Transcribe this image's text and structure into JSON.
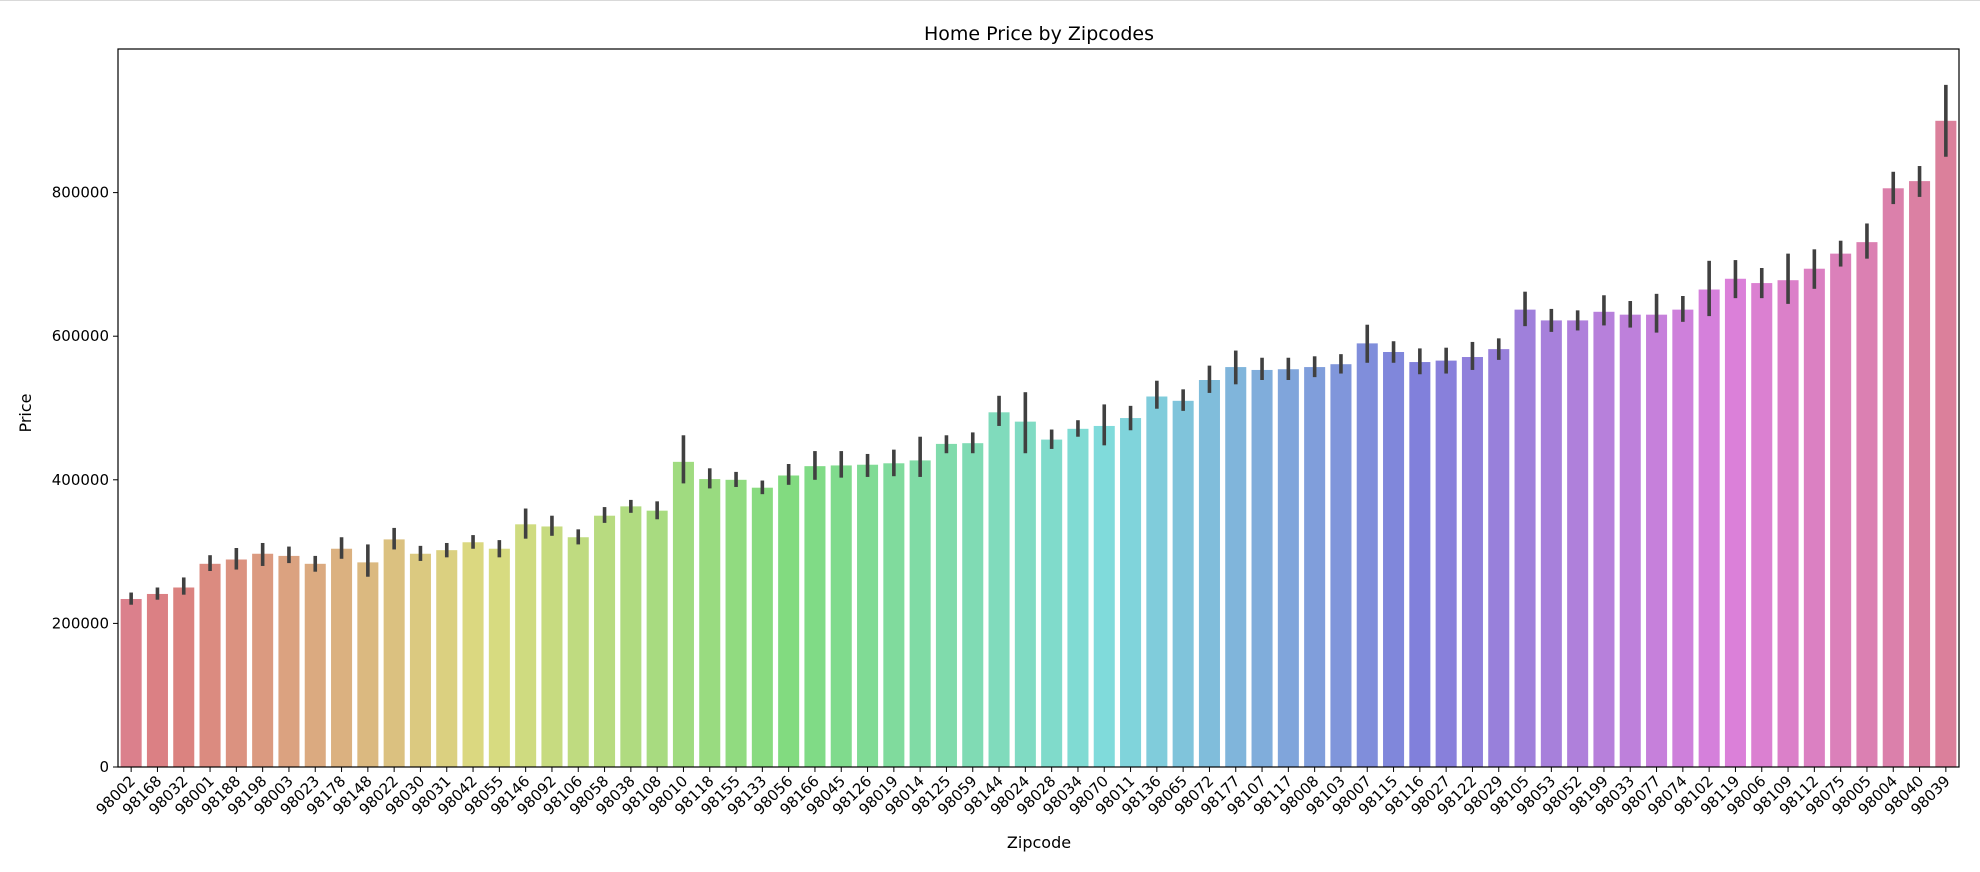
{
  "chart_data": {
    "type": "bar",
    "title": "Home Price by Zipcodes",
    "xlabel": "Zipcode",
    "ylabel": "Price",
    "ylim": [
      0,
      1000000
    ],
    "yticks": [
      0,
      200000,
      400000,
      600000,
      800000
    ],
    "ytick_labels": [
      "0",
      "200000",
      "400000",
      "600000",
      "800000"
    ],
    "grid": false,
    "legend": "none",
    "categories": [
      "98002",
      "98168",
      "98032",
      "98001",
      "98188",
      "98198",
      "98003",
      "98023",
      "98178",
      "98148",
      "98022",
      "98030",
      "98031",
      "98042",
      "98055",
      "98146",
      "98092",
      "98106",
      "98058",
      "98038",
      "98108",
      "98010",
      "98118",
      "98155",
      "98133",
      "98056",
      "98166",
      "98045",
      "98126",
      "98019",
      "98014",
      "98125",
      "98059",
      "98144",
      "98024",
      "98028",
      "98034",
      "98070",
      "98011",
      "98136",
      "98065",
      "98072",
      "98177",
      "98107",
      "98117",
      "98008",
      "98103",
      "98007",
      "98115",
      "98116",
      "98027",
      "98122",
      "98029",
      "98105",
      "98053",
      "98052",
      "98199",
      "98033",
      "98077",
      "98074",
      "98102",
      "98119",
      "98006",
      "98109",
      "98112",
      "98075",
      "98005",
      "98004",
      "98040",
      "98039"
    ],
    "values": [
      234000,
      241000,
      250000,
      283000,
      289000,
      297000,
      294000,
      283000,
      304000,
      285000,
      317000,
      297000,
      302000,
      313000,
      304000,
      338000,
      335000,
      320000,
      350000,
      363000,
      357000,
      425000,
      401000,
      400000,
      389000,
      406000,
      419000,
      420000,
      421000,
      423000,
      427000,
      450000,
      451000,
      494000,
      481000,
      456000,
      471000,
      475000,
      486000,
      516000,
      510000,
      539000,
      557000,
      553000,
      554000,
      557000,
      561000,
      590000,
      578000,
      564000,
      566000,
      571000,
      582000,
      637000,
      622000,
      622000,
      634000,
      630000,
      630000,
      637000,
      665000,
      680000,
      674000,
      678000,
      694000,
      715000,
      731000,
      806000,
      816000,
      900000
    ],
    "error_low": [
      226000,
      233000,
      240000,
      273000,
      275000,
      280000,
      284000,
      272000,
      290000,
      265000,
      303000,
      287000,
      292000,
      304000,
      292000,
      318000,
      322000,
      310000,
      340000,
      354000,
      345000,
      395000,
      388000,
      390000,
      380000,
      393000,
      400000,
      403000,
      404000,
      405000,
      404000,
      437000,
      437000,
      475000,
      437000,
      443000,
      460000,
      448000,
      469000,
      499000,
      496000,
      521000,
      533000,
      539000,
      539000,
      543000,
      548000,
      563000,
      563000,
      547000,
      548000,
      553000,
      567000,
      614000,
      606000,
      608000,
      615000,
      612000,
      605000,
      620000,
      628000,
      653000,
      653000,
      645000,
      666000,
      697000,
      708000,
      784000,
      794000,
      850000
    ],
    "error_high": [
      243000,
      250000,
      264000,
      295000,
      305000,
      312000,
      307000,
      294000,
      320000,
      310000,
      333000,
      308000,
      312000,
      323000,
      316000,
      360000,
      350000,
      331000,
      362000,
      372000,
      370000,
      462000,
      416000,
      411000,
      399000,
      422000,
      440000,
      440000,
      436000,
      442000,
      460000,
      462000,
      466000,
      517000,
      522000,
      470000,
      483000,
      505000,
      503000,
      538000,
      526000,
      559000,
      580000,
      570000,
      570000,
      572000,
      575000,
      616000,
      593000,
      583000,
      584000,
      592000,
      597000,
      662000,
      638000,
      636000,
      657000,
      649000,
      659000,
      656000,
      705000,
      706000,
      695000,
      715000,
      721000,
      733000,
      757000,
      829000,
      837000,
      950000
    ],
    "error_bar_color": "#404040",
    "palette": {
      "hue_start": 352,
      "hue_end": 342,
      "saturation": 56,
      "lightness": 68
    }
  }
}
